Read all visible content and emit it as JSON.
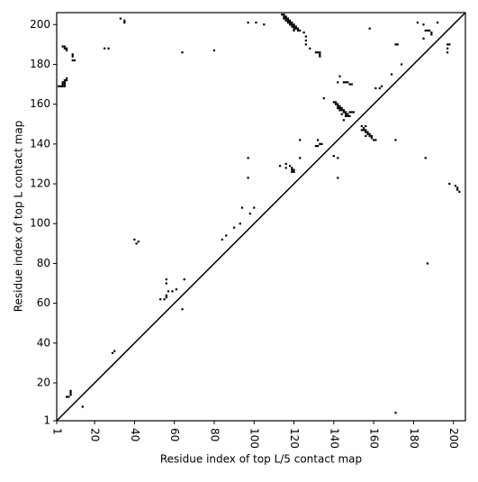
{
  "chart_data": {
    "type": "scatter",
    "x_label": "Residue index of top L/5 contact map",
    "y_label": "Residue index of top L contact map",
    "color": "#000000",
    "diagonal": true,
    "xlim": [
      1,
      206
    ],
    "ylim": [
      1,
      206
    ],
    "xticks": [
      1,
      20,
      40,
      60,
      80,
      100,
      120,
      140,
      160,
      180,
      200
    ],
    "yticks": [
      1,
      20,
      40,
      60,
      80,
      100,
      120,
      140,
      160,
      180,
      200
    ],
    "x": [
      2,
      3,
      4,
      5,
      4,
      5,
      4,
      5,
      5,
      6,
      6,
      4,
      5,
      5,
      6,
      6,
      9,
      9,
      9,
      10,
      6,
      7,
      8,
      8,
      8,
      14,
      33,
      35,
      35,
      25,
      27,
      29,
      30,
      40,
      41,
      42,
      53,
      55,
      56,
      56,
      57,
      56,
      56,
      59,
      61,
      64,
      65,
      64,
      80,
      84,
      86,
      90,
      93,
      94,
      97,
      97,
      98,
      100,
      97,
      101,
      105,
      114,
      115,
      115,
      116,
      116,
      117,
      117,
      118,
      118,
      119,
      119,
      120,
      120,
      121,
      121,
      122,
      122,
      115,
      116,
      117,
      118,
      119,
      120,
      123,
      120,
      125,
      126,
      126,
      126,
      128,
      131,
      132,
      133,
      133,
      133,
      113,
      116,
      116,
      118,
      119,
      119,
      119,
      120,
      120,
      123,
      123,
      131,
      132,
      133,
      132,
      134,
      135,
      140,
      142,
      142,
      142,
      143,
      145,
      146,
      147,
      148,
      149,
      140,
      141,
      141,
      142,
      142,
      143,
      143,
      144,
      144,
      145,
      145,
      146,
      146,
      147,
      147,
      148,
      148,
      149,
      150,
      145,
      146,
      144,
      143,
      142,
      154,
      155,
      155,
      156,
      156,
      157,
      157,
      158,
      158,
      159,
      159,
      160,
      161,
      156,
      154,
      156,
      158,
      161,
      163,
      164,
      169,
      171,
      172,
      171,
      174,
      182,
      185,
      185,
      186,
      187,
      188,
      189,
      189,
      192,
      197,
      198,
      197,
      197,
      186,
      187,
      198,
      201,
      202,
      203,
      202,
      171
    ],
    "values": [
      169,
      169,
      169,
      169,
      170,
      170,
      171,
      171,
      172,
      172,
      173,
      189,
      189,
      188,
      188,
      187,
      185,
      184,
      182,
      182,
      13,
      13,
      14,
      15,
      16,
      8,
      203,
      202,
      201,
      188,
      188,
      35,
      36,
      92,
      90,
      91,
      62,
      62,
      63,
      64,
      66,
      70,
      72,
      66,
      67,
      57,
      72,
      186,
      187,
      92,
      94,
      98,
      100,
      108,
      133,
      123,
      105,
      108,
      201,
      201,
      200,
      205,
      205,
      204,
      204,
      203,
      203,
      202,
      202,
      201,
      201,
      200,
      200,
      199,
      199,
      198,
      198,
      197,
      203,
      202,
      201,
      200,
      199,
      198,
      197,
      197,
      196,
      194,
      192,
      190,
      188,
      186,
      186,
      186,
      185,
      184,
      129,
      130,
      128,
      129,
      128,
      127,
      126,
      126,
      127,
      142,
      133,
      139,
      139,
      140,
      142,
      140,
      163,
      134,
      133,
      123,
      171,
      174,
      171,
      171,
      171,
      170,
      170,
      161,
      161,
      160,
      160,
      159,
      159,
      158,
      158,
      157,
      157,
      156,
      156,
      155,
      155,
      154,
      154,
      156,
      156,
      156,
      152,
      154,
      155,
      157,
      158,
      149,
      148,
      147,
      147,
      146,
      146,
      145,
      145,
      144,
      144,
      143,
      142,
      142,
      149,
      147,
      144,
      198,
      168,
      168,
      169,
      175,
      190,
      190,
      142,
      180,
      201,
      200,
      193,
      197,
      197,
      197,
      196,
      195,
      201,
      190,
      190,
      188,
      186,
      133,
      80,
      120,
      119,
      117,
      116,
      118,
      5
    ]
  }
}
